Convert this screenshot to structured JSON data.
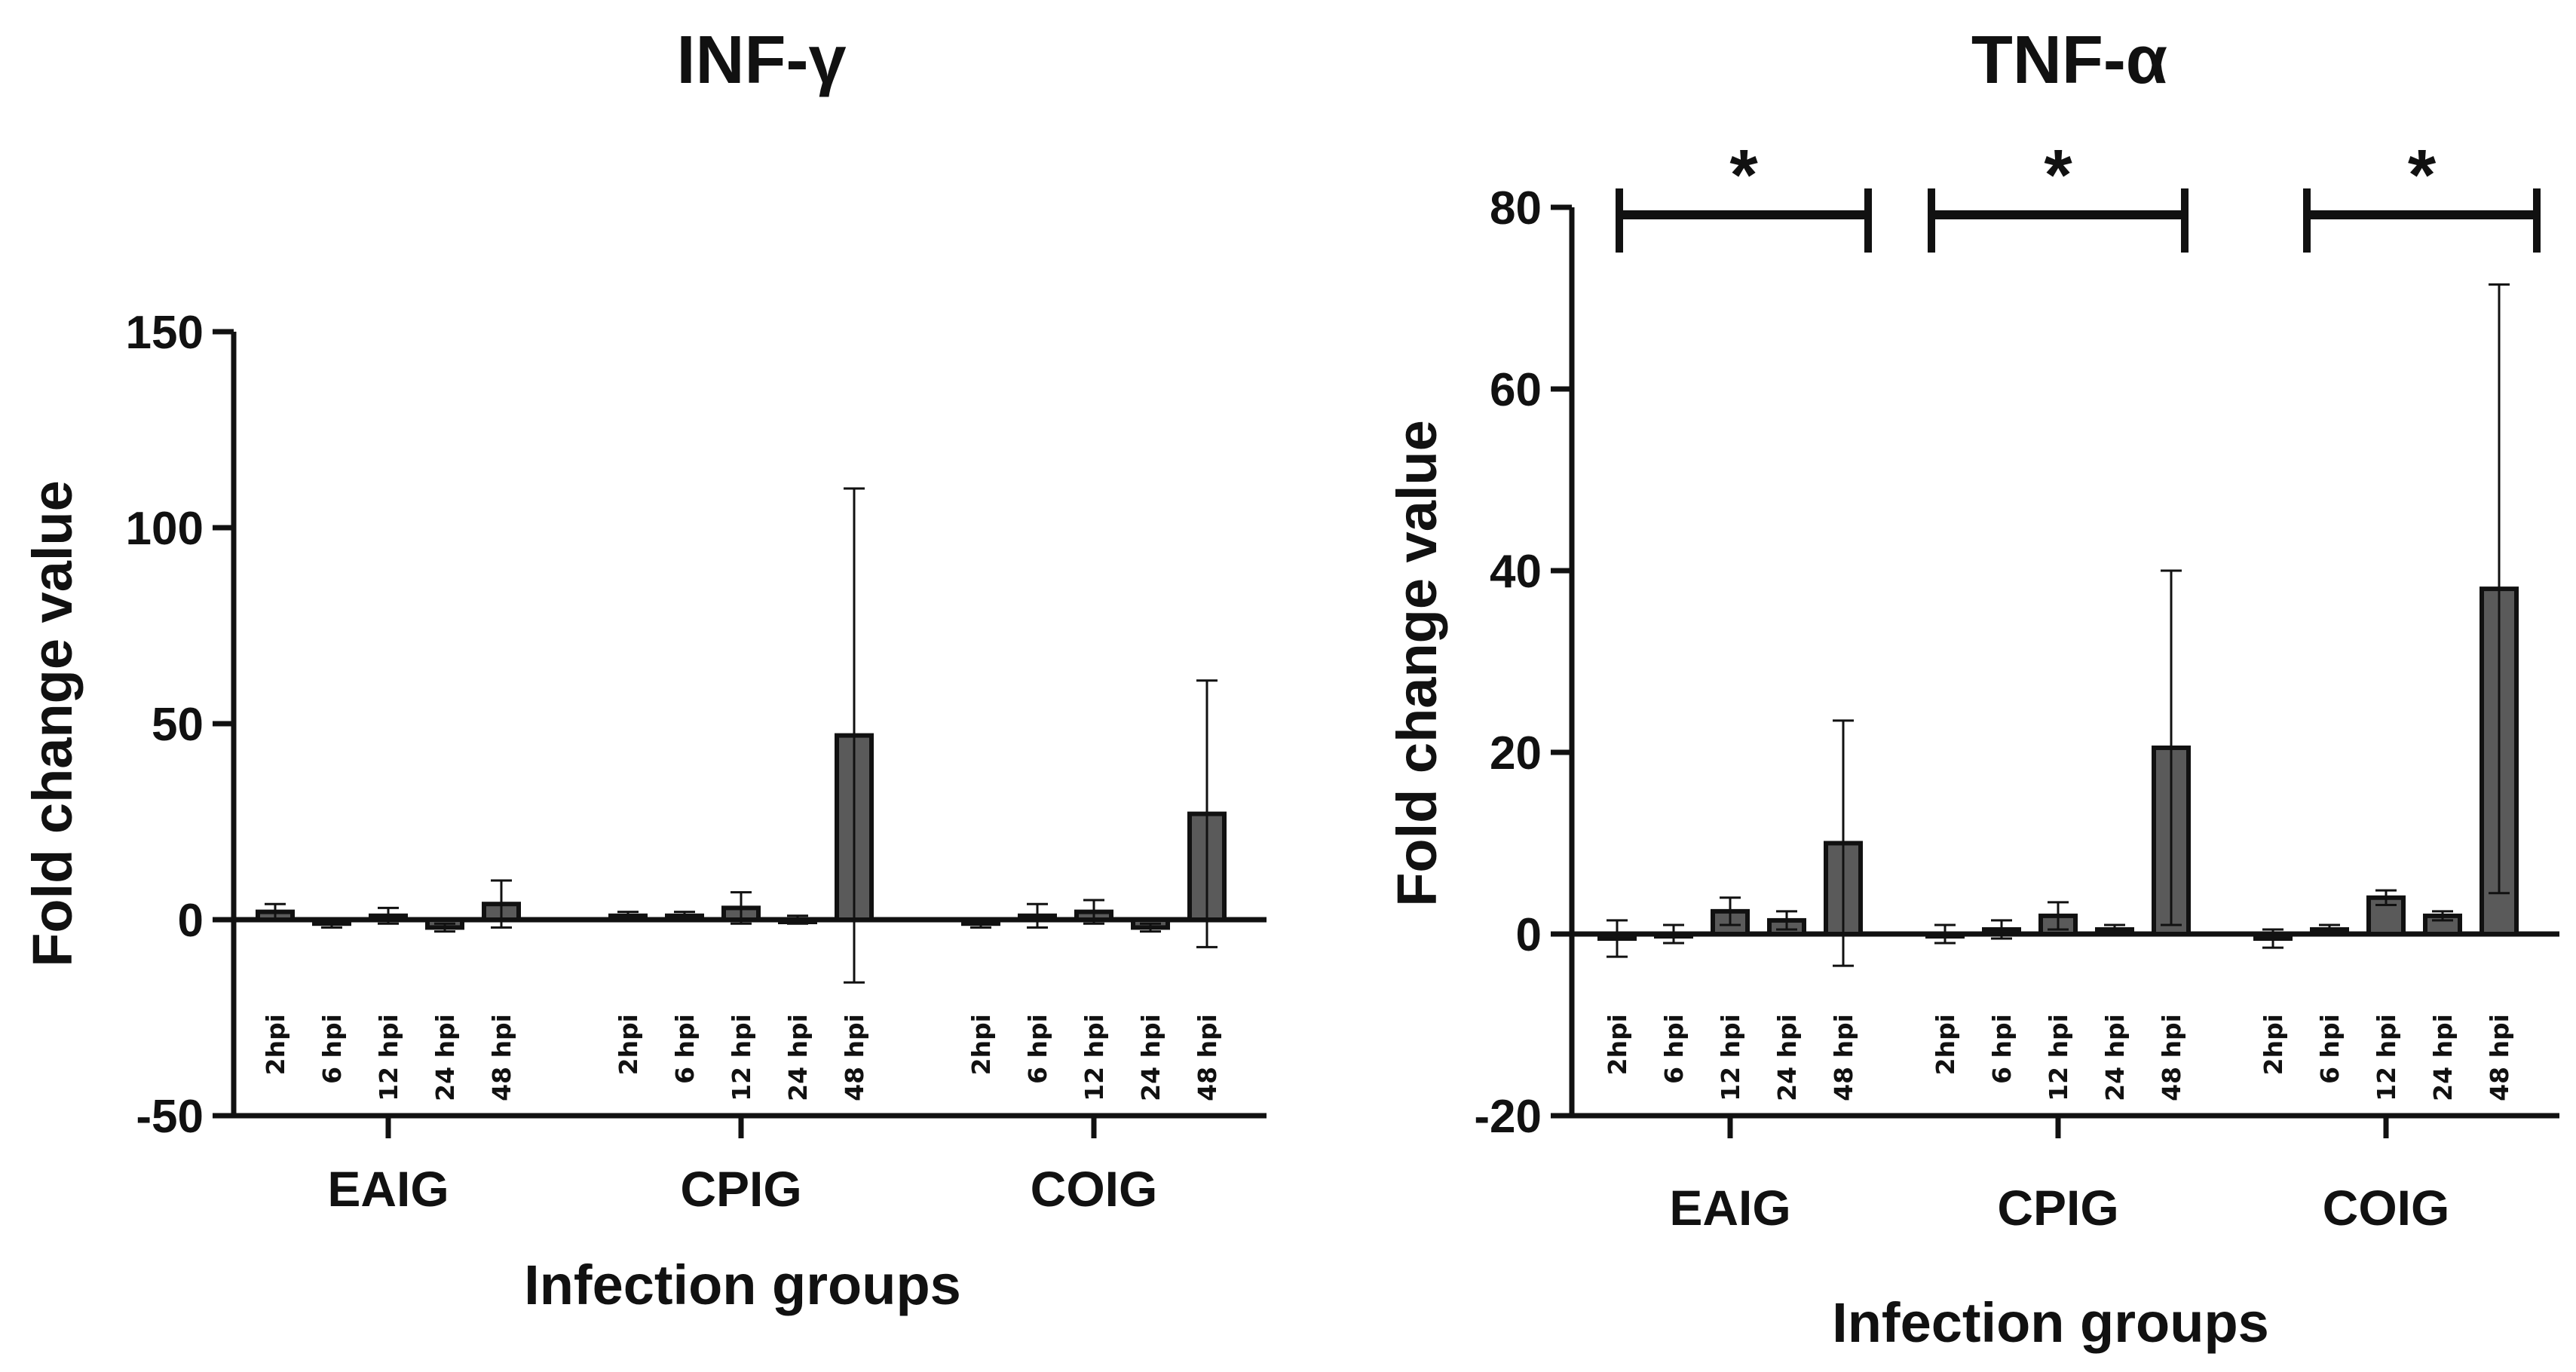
{
  "chart_data": [
    {
      "type": "bar",
      "title": "INF-γ",
      "xlabel": "Infection groups",
      "ylabel": "Fold change value",
      "ylim": [
        -50,
        150
      ],
      "yticks": [
        -50,
        0,
        50,
        100,
        150
      ],
      "groups": [
        "EAIG",
        "CPIG",
        "COIG"
      ],
      "categories": [
        "2hpi",
        "6 hpi",
        "12 hpi",
        "24 hpi",
        "48 hpi"
      ],
      "series": [
        {
          "name": "EAIG",
          "values": [
            2,
            -1,
            1,
            -2,
            4
          ],
          "errors": [
            2,
            1,
            2,
            1,
            6
          ]
        },
        {
          "name": "CPIG",
          "values": [
            1,
            1,
            3,
            0,
            47
          ],
          "errors": [
            1,
            1,
            4,
            1,
            63
          ]
        },
        {
          "name": "COIG",
          "values": [
            -1,
            1,
            2,
            -2,
            27
          ],
          "errors": [
            1,
            3,
            3,
            1,
            34
          ]
        }
      ],
      "significance": []
    },
    {
      "type": "bar",
      "title": "TNF-α",
      "xlabel": "Infection groups",
      "ylabel": "Fold change value",
      "ylim": [
        -20,
        80
      ],
      "yticks": [
        -20,
        0,
        20,
        40,
        60,
        80
      ],
      "groups": [
        "EAIG",
        "CPIG",
        "COIG"
      ],
      "categories": [
        "2hpi",
        "6 hpi",
        "12 hpi",
        "24 hpi",
        "48 hpi"
      ],
      "series": [
        {
          "name": "EAIG",
          "values": [
            -0.5,
            0,
            2.5,
            1.5,
            10
          ],
          "errors": [
            2,
            1,
            1.5,
            1,
            13.5
          ]
        },
        {
          "name": "CPIG",
          "values": [
            0,
            0.5,
            2,
            0.5,
            20.5
          ],
          "errors": [
            1,
            1,
            1.5,
            0.5,
            19.5
          ]
        },
        {
          "name": "COIG",
          "values": [
            -0.5,
            0.5,
            4,
            2,
            38
          ],
          "errors": [
            1,
            0.5,
            0.8,
            0.5,
            33.5
          ]
        }
      ],
      "significance": [
        {
          "group": "EAIG",
          "label": "*"
        },
        {
          "group": "CPIG",
          "label": "*"
        },
        {
          "group": "COIG",
          "label": "*"
        }
      ]
    }
  ]
}
